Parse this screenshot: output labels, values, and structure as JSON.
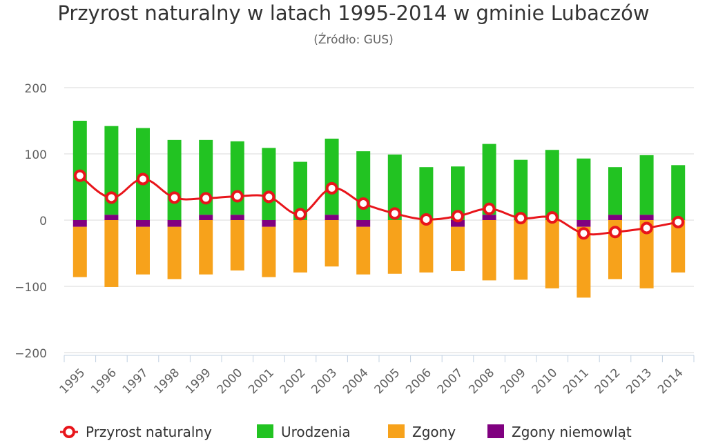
{
  "title": "Przyrost naturalny w latach 1995-2014 w gminie Lubaczów",
  "subtitle": "(Źródło: GUS)",
  "chart_data": {
    "type": "bar",
    "categories": [
      "1995",
      "1996",
      "1997",
      "1998",
      "1999",
      "2000",
      "2001",
      "2002",
      "2003",
      "2004",
      "2005",
      "2006",
      "2007",
      "2008",
      "2009",
      "2010",
      "2011",
      "2012",
      "2013",
      "2014"
    ],
    "series": [
      {
        "name": "Urodzenia",
        "type": "bar",
        "color": "#22c322",
        "values": [
          150,
          134,
          139,
          121,
          113,
          111,
          109,
          88,
          115,
          104,
          99,
          80,
          81,
          107,
          91,
          106,
          93,
          72,
          90,
          83
        ]
      },
      {
        "name": "Zgony",
        "type": "bar",
        "color": "#f7a21b",
        "values": [
          -76,
          -101,
          -72,
          -79,
          -82,
          -76,
          -76,
          -79,
          -70,
          -72,
          -81,
          -79,
          -67,
          -91,
          -90,
          -103,
          -107,
          -89,
          -103,
          -79
        ]
      },
      {
        "name": "Zgony niemowląt",
        "type": "bar",
        "color": "#800080",
        "values": [
          -10,
          8,
          -10,
          -10,
          8,
          8,
          -10,
          0,
          8,
          -10,
          0,
          0,
          -10,
          8,
          0,
          0,
          -10,
          8,
          8,
          0
        ]
      },
      {
        "name": "Przyrost naturalny",
        "type": "line",
        "color": "#e8151b",
        "values": [
          67,
          34,
          62,
          34,
          33,
          36,
          35,
          9,
          48,
          25,
          10,
          1,
          6,
          17,
          3,
          4,
          -20,
          -18,
          -12,
          -3
        ]
      }
    ],
    "ylim": [
      -200,
      200
    ],
    "yticks": [
      "200",
      "100",
      "0",
      "−100",
      "−200"
    ],
    "grid": true,
    "legend_position": "bottom"
  },
  "legend": [
    {
      "label": "Przyrost naturalny",
      "color": "#e8151b",
      "kind": "line"
    },
    {
      "label": "Urodzenia",
      "color": "#22c322",
      "kind": "bar"
    },
    {
      "label": "Zgony",
      "color": "#f7a21b",
      "kind": "bar"
    },
    {
      "label": "Zgony niemowląt",
      "color": "#800080",
      "kind": "bar"
    }
  ]
}
